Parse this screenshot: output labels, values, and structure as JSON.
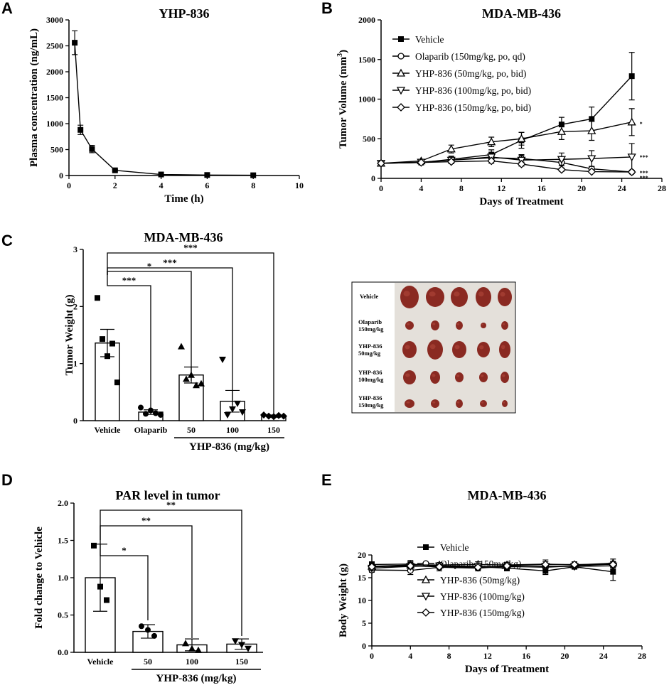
{
  "panel_labels": {
    "a": "A",
    "b": "B",
    "c": "C",
    "d": "D",
    "e": "E"
  },
  "photo": {
    "rows": [
      "Vehicle",
      "Olaparib",
      "150mg/kg",
      "YHP-836",
      "50mg/kg",
      "YHP-836",
      "100mg/kg",
      "YHP-836",
      "150mg/kg"
    ],
    "tissue_color": "#8a2a22",
    "background_color": "#e4e0da"
  },
  "chart_data": [
    {
      "id": "A",
      "type": "line",
      "title": "YHP-836",
      "xlabel": "Time (h)",
      "ylabel": "Plasma concentration (ng/mL)",
      "xlim": [
        0,
        10
      ],
      "ylim": [
        0,
        3000
      ],
      "xticks": [
        "0",
        "2",
        "4",
        "6",
        "8",
        "10"
      ],
      "yticks": [
        "0",
        "500",
        "1000",
        "1500",
        "2000",
        "2500",
        "3000"
      ],
      "series": [
        {
          "name": "YHP-836",
          "x": [
            0.25,
            0.5,
            1,
            2,
            4,
            6,
            8
          ],
          "y": [
            2560,
            880,
            510,
            100,
            20,
            10,
            5
          ],
          "err": [
            230,
            90,
            70,
            15,
            5,
            3,
            2
          ]
        }
      ]
    },
    {
      "id": "B",
      "type": "line",
      "title": "MDA-MB-436",
      "xlabel": "Days of Treatment",
      "ylabel": "Tumor Volume (mm",
      "ylabel_sup": "3",
      "ylabel_close": ")",
      "xlim": [
        0,
        28
      ],
      "ylim": [
        0,
        2000
      ],
      "xticks": [
        "0",
        "4",
        "8",
        "12",
        "16",
        "20",
        "24",
        "28"
      ],
      "yticks": [
        "0",
        "500",
        "1000",
        "1500",
        "2000"
      ],
      "x": [
        0,
        4,
        7,
        11,
        14,
        18,
        21,
        25
      ],
      "series": [
        {
          "name": "Vehicle",
          "marker": "square-filled",
          "y": [
            190,
            200,
            240,
            300,
            480,
            680,
            750,
            1290
          ],
          "err": [
            15,
            20,
            40,
            60,
            100,
            90,
            150,
            300
          ]
        },
        {
          "name": "Olaparib (150mg/kg, po, qd)",
          "marker": "circle-open",
          "y": [
            190,
            200,
            230,
            260,
            250,
            200,
            120,
            80
          ],
          "err": [
            15,
            20,
            30,
            40,
            50,
            40,
            30,
            15
          ]
        },
        {
          "name": "YHP-836 (50mg/kg, po, bid)",
          "marker": "triangle-up-open",
          "y": [
            190,
            220,
            370,
            460,
            500,
            590,
            600,
            710
          ],
          "err": [
            15,
            20,
            50,
            60,
            80,
            100,
            120,
            170
          ]
        },
        {
          "name": "YHP-836 (100mg/kg, po, bid)",
          "marker": "triangle-down-open",
          "y": [
            190,
            205,
            230,
            270,
            230,
            240,
            250,
            270
          ],
          "err": [
            15,
            20,
            35,
            50,
            60,
            80,
            100,
            170
          ]
        },
        {
          "name": "YHP-836 (150mg/kg, po, bid)",
          "marker": "diamond-open",
          "y": [
            190,
            200,
            210,
            220,
            180,
            110,
            85,
            80
          ],
          "err": [
            15,
            20,
            25,
            30,
            25,
            20,
            15,
            10
          ]
        }
      ],
      "end_annotations": [
        "*",
        "***",
        "***",
        "***"
      ]
    },
    {
      "id": "C",
      "type": "bar",
      "title": "MDA-MB-436",
      "ylabel": "Tumor Weight (g)",
      "xlabel": "YHP-836 (mg/kg)",
      "ylim": [
        0,
        3
      ],
      "yticks": [
        "0",
        "1",
        "2",
        "3"
      ],
      "categories": [
        "Vehicle",
        "Olaparib",
        "50",
        "100",
        "150"
      ],
      "values": [
        1.36,
        0.15,
        0.8,
        0.34,
        0.08
      ],
      "err": [
        0.24,
        0.04,
        0.14,
        0.19,
        0.02
      ],
      "points": [
        [
          2.15,
          1.43,
          1.13,
          1.35,
          0.67
        ],
        [
          0.23,
          0.12,
          0.18,
          0.13,
          0.1
        ],
        [
          1.3,
          0.73,
          0.8,
          0.62,
          0.65
        ],
        [
          1.07,
          0.1,
          0.2,
          0.3,
          0.15
        ],
        [
          0.1,
          0.08,
          0.07,
          0.09,
          0.08
        ]
      ],
      "significance": [
        {
          "from": "Vehicle",
          "to": "Olaparib",
          "label": "***"
        },
        {
          "from": "Vehicle",
          "to": "50",
          "label": "*"
        },
        {
          "from": "Vehicle",
          "to": "100",
          "label": "***"
        },
        {
          "from": "Vehicle",
          "to": "150",
          "label": "***"
        }
      ]
    },
    {
      "id": "D",
      "type": "bar",
      "title": "PAR level in tumor",
      "ylabel": "Fold change to Vehicle",
      "xlabel": "YHP-836 (mg/kg)",
      "ylim": [
        0,
        2.0
      ],
      "yticks": [
        "0.0",
        "0.5",
        "1.0",
        "1.5",
        "2.0"
      ],
      "categories": [
        "Vehicle",
        "50",
        "100",
        "150"
      ],
      "values": [
        1.0,
        0.28,
        0.1,
        0.11
      ],
      "err": [
        0.45,
        0.09,
        0.08,
        0.07
      ],
      "points": [
        [
          1.43,
          0.88,
          0.7
        ],
        [
          0.35,
          0.3,
          0.22
        ],
        [
          0.12,
          0.05,
          0.03
        ],
        [
          0.15,
          0.1,
          0.05
        ]
      ],
      "significance": [
        {
          "from": "Vehicle",
          "to": "50",
          "label": "*"
        },
        {
          "from": "Vehicle",
          "to": "100",
          "label": "**"
        },
        {
          "from": "Vehicle",
          "to": "150",
          "label": "**"
        }
      ]
    },
    {
      "id": "E",
      "type": "line",
      "title": "MDA-MB-436",
      "xlabel": "Days of Treatment",
      "ylabel": "Body Weight (g)",
      "xlim": [
        0,
        28
      ],
      "ylim": [
        0,
        20
      ],
      "xticks": [
        "0",
        "4",
        "8",
        "12",
        "16",
        "20",
        "24",
        "28"
      ],
      "yticks": [
        "0",
        "5",
        "10",
        "15",
        "20"
      ],
      "x": [
        0,
        4,
        7,
        11,
        14,
        18,
        21,
        25
      ],
      "series": [
        {
          "name": "Vehicle",
          "marker": "square-filled",
          "y": [
            17.9,
            18.0,
            17.6,
            17.4,
            17.1,
            16.5,
            17.4,
            16.3
          ],
          "err": [
            0.6,
            0.8,
            0.7,
            0.6,
            0.6,
            0.8,
            0.5,
            1.9
          ]
        },
        {
          "name": "Olaparib (150mg/kg)",
          "marker": "circle-open",
          "y": [
            16.7,
            16.6,
            17.3,
            17.1,
            17.5,
            17.3,
            17.6,
            18.0
          ],
          "err": [
            0.5,
            0.9,
            0.8,
            0.6,
            0.6,
            0.7,
            0.5,
            0.6
          ]
        },
        {
          "name": "YHP-836 (50mg/kg)",
          "marker": "triangle-up-open",
          "y": [
            17.5,
            17.8,
            17.8,
            17.9,
            17.8,
            18.0,
            17.8,
            18.2
          ],
          "err": [
            0.5,
            0.7,
            0.5,
            0.6,
            0.6,
            0.9,
            0.7,
            0.9
          ]
        },
        {
          "name": "YHP-836 (100mg/kg)",
          "marker": "triangle-down-open",
          "y": [
            17.1,
            17.5,
            17.6,
            17.5,
            17.4,
            17.5,
            17.5,
            17.6
          ],
          "err": [
            0.5,
            0.6,
            0.5,
            0.5,
            0.5,
            0.6,
            0.5,
            0.6
          ]
        },
        {
          "name": "YHP-836 (150mg/kg)",
          "marker": "diamond-open",
          "y": [
            17.4,
            17.6,
            17.4,
            17.3,
            17.6,
            17.9,
            17.9,
            17.9
          ],
          "err": [
            0.5,
            0.6,
            0.5,
            0.5,
            0.5,
            0.6,
            0.5,
            0.6
          ]
        }
      ]
    }
  ]
}
